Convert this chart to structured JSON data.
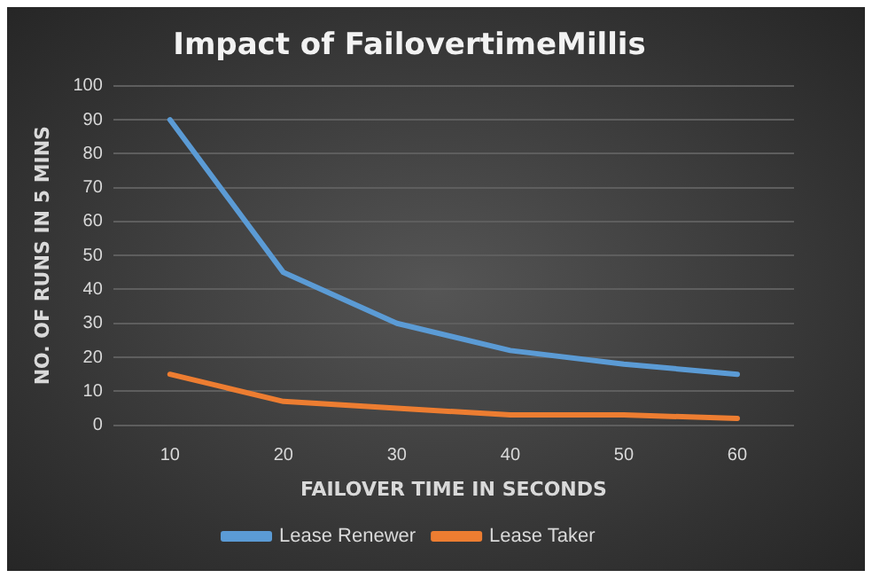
{
  "chart_data": {
    "type": "line",
    "title": "Impact of FailovertimeMillis",
    "xlabel": "FAILOVER TIME IN SECONDS",
    "ylabel": "NO. OF RUNS IN 5 MINS",
    "categories": [
      "10",
      "20",
      "30",
      "40",
      "50",
      "60"
    ],
    "series": [
      {
        "name": "Lease Renewer",
        "color": "#5b9bd5",
        "values": [
          90,
          45,
          30,
          22,
          18,
          15
        ]
      },
      {
        "name": "Lease Taker",
        "color": "#ed7d31",
        "values": [
          15,
          7,
          5,
          3,
          3,
          2
        ]
      }
    ],
    "ylim": [
      0,
      100
    ],
    "yticks": [
      0,
      10,
      20,
      30,
      40,
      50,
      60,
      70,
      80,
      90,
      100
    ],
    "grid": "y",
    "legend": "bottom",
    "marker": "none",
    "line_style": "solid"
  }
}
